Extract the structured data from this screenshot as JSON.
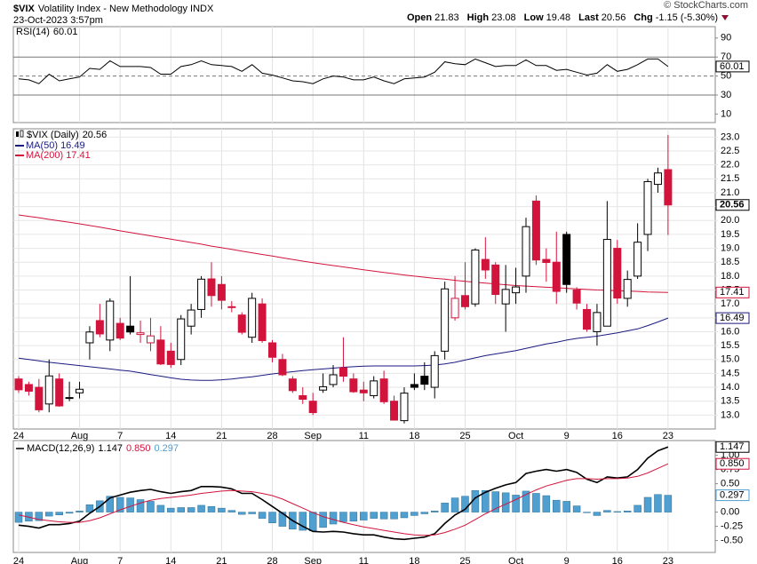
{
  "header": {
    "symbol": "$VIX",
    "name": "Volatility Index - New Methodology  INDX",
    "timestamp": "23-Oct-2023 3:57pm",
    "quote_labels": [
      "Open",
      "High",
      "Low",
      "Last",
      "Chg"
    ],
    "change": "-1.15 (-5.30%)",
    "watermark": "© StockCharts.com"
  },
  "chart_data": [
    {
      "type": "rsi",
      "name": "RSI(14)",
      "color": "#000000",
      "ylim": [
        1,
        102
      ],
      "yticks": [
        10,
        30,
        50,
        70,
        90
      ],
      "reference_lines": [
        30,
        50,
        70
      ],
      "reference_styles": [
        "solid",
        "dashed",
        "solid"
      ],
      "values": [
        47,
        46,
        42,
        52,
        45,
        47,
        49,
        58,
        57,
        66,
        60,
        60,
        60,
        59,
        52,
        52,
        60,
        62,
        66,
        62,
        61,
        60,
        55,
        62,
        53,
        51,
        48,
        45,
        44,
        42,
        47,
        50,
        49,
        46,
        46,
        49,
        45,
        42,
        47,
        48,
        49,
        54,
        65,
        63,
        62,
        68,
        64,
        60,
        61,
        61,
        67,
        61,
        61,
        56,
        57,
        54,
        51,
        53,
        62,
        55,
        57,
        62,
        68,
        68,
        60.01
      ]
    },
    {
      "type": "candlestick",
      "name": "$VIX (Daily)",
      "up_color": "#000000",
      "down_color": "#d2143c",
      "grid": true,
      "categories": [
        "24",
        null,
        null,
        null,
        null,
        null,
        "Aug",
        null,
        null,
        null,
        "7",
        null,
        null,
        null,
        null,
        "14",
        null,
        null,
        null,
        null,
        "21",
        null,
        null,
        null,
        null,
        "28",
        null,
        null,
        null,
        "Sep",
        null,
        null,
        null,
        null,
        "11",
        null,
        null,
        null,
        null,
        "18",
        null,
        null,
        null,
        null,
        "25",
        null,
        null,
        null,
        null,
        "Oct",
        null,
        null,
        null,
        null,
        "9",
        null,
        null,
        null,
        null,
        "16",
        null,
        null,
        null,
        null,
        "23"
      ],
      "open": [
        14.3,
        14.1,
        14.0,
        13.4,
        14.3,
        13.6,
        13.8,
        15.6,
        16.4,
        15.7,
        16.3,
        16.2,
        15.9,
        15.6,
        15.7,
        15.3,
        15.0,
        16.2,
        16.8,
        17.9,
        17.7,
        16.9,
        16.6,
        15.8,
        17.0,
        15.6,
        15.0,
        14.3,
        13.7,
        13.5,
        13.9,
        14.1,
        14.7,
        14.3,
        13.9,
        13.7,
        14.3,
        13.5,
        12.8,
        14.1,
        14.4,
        14.0,
        15.3,
        16.5,
        17.3,
        17.0,
        18.6,
        18.4,
        17.0,
        17.4,
        18.0,
        20.7,
        18.6,
        18.5,
        19.5,
        17.5,
        16.8,
        16.0,
        16.2,
        19.0,
        17.2,
        18.0,
        19.5,
        21.3,
        21.83
      ],
      "high": [
        14.4,
        14.2,
        14.3,
        15.0,
        14.5,
        14.2,
        14.2,
        16.2,
        17.0,
        17.2,
        16.5,
        18.0,
        16.4,
        16.5,
        16.2,
        15.6,
        16.6,
        17.0,
        18.0,
        18.5,
        18.0,
        17.1,
        16.7,
        17.4,
        17.2,
        15.7,
        15.2,
        14.4,
        14.0,
        13.8,
        14.5,
        14.8,
        15.8,
        14.5,
        14.2,
        14.4,
        14.6,
        13.7,
        14.0,
        14.5,
        14.9,
        15.3,
        17.8,
        18.0,
        18.5,
        19.0,
        19.4,
        18.5,
        18.4,
        18.3,
        20.1,
        20.9,
        19.0,
        19.6,
        19.6,
        17.6,
        17.0,
        17.0,
        20.7,
        19.3,
        18.2,
        19.9,
        21.5,
        21.9,
        23.08
      ],
      "low": [
        13.8,
        13.7,
        13.1,
        13.1,
        13.3,
        13.5,
        13.6,
        15.0,
        15.8,
        15.3,
        15.7,
        15.9,
        15.6,
        15.3,
        14.8,
        14.7,
        14.8,
        15.9,
        16.5,
        16.9,
        16.8,
        16.7,
        15.9,
        15.6,
        15.6,
        14.9,
        14.4,
        13.8,
        13.4,
        13.0,
        13.8,
        14.0,
        14.2,
        13.8,
        13.5,
        13.6,
        13.4,
        12.8,
        12.7,
        13.9,
        13.9,
        13.6,
        15.0,
        16.4,
        16.8,
        16.9,
        17.9,
        17.0,
        16.0,
        17.0,
        17.4,
        18.4,
        17.8,
        17.0,
        17.4,
        16.8,
        16.0,
        15.5,
        16.2,
        17.0,
        16.9,
        17.9,
        18.9,
        21.0,
        19.48
      ],
      "close": [
        13.91,
        13.86,
        13.19,
        14.41,
        13.33,
        13.63,
        13.93,
        15.99,
        15.92,
        17.1,
        15.77,
        15.99,
        15.96,
        15.85,
        14.84,
        14.82,
        16.46,
        16.78,
        17.89,
        17.3,
        17.13,
        16.87,
        15.98,
        17.2,
        15.68,
        15.08,
        14.45,
        13.88,
        13.57,
        13.09,
        14.02,
        14.45,
        14.4,
        13.84,
        13.8,
        14.23,
        13.48,
        12.82,
        13.79,
        14.0,
        14.11,
        15.14,
        17.54,
        17.2,
        16.9,
        18.94,
        18.22,
        17.34,
        17.52,
        17.61,
        19.78,
        18.58,
        18.49,
        17.45,
        17.7,
        17.03,
        16.09,
        16.69,
        19.32,
        17.21,
        17.88,
        19.22,
        21.4,
        21.71,
        20.56
      ],
      "series": [
        {
          "name": "MA(50)",
          "color": "#1a1a80",
          "values": [
            15.05,
            15.0,
            14.95,
            14.9,
            14.86,
            14.82,
            14.78,
            14.74,
            14.7,
            14.66,
            14.62,
            14.58,
            14.52,
            14.46,
            14.4,
            14.34,
            14.29,
            14.26,
            14.25,
            14.25,
            14.27,
            14.3,
            14.34,
            14.38,
            14.43,
            14.48,
            14.52,
            14.56,
            14.6,
            14.63,
            14.66,
            14.69,
            14.72,
            14.74,
            14.76,
            14.77,
            14.77,
            14.77,
            14.77,
            14.77,
            14.78,
            14.8,
            14.84,
            14.9,
            14.98,
            15.06,
            15.14,
            15.2,
            15.26,
            15.32,
            15.4,
            15.48,
            15.56,
            15.62,
            15.7,
            15.76,
            15.8,
            15.84,
            15.9,
            15.96,
            16.03,
            16.1,
            16.22,
            16.35,
            16.49
          ]
        },
        {
          "name": "MA(200)",
          "color": "#d2143c",
          "values": [
            20.2,
            20.15,
            20.1,
            20.04,
            19.99,
            19.94,
            19.88,
            19.82,
            19.76,
            19.7,
            19.63,
            19.57,
            19.51,
            19.45,
            19.39,
            19.33,
            19.27,
            19.21,
            19.15,
            19.08,
            19.02,
            18.96,
            18.9,
            18.84,
            18.78,
            18.72,
            18.66,
            18.6,
            18.54,
            18.48,
            18.43,
            18.38,
            18.33,
            18.28,
            18.23,
            18.18,
            18.13,
            18.09,
            18.04,
            18.0,
            17.96,
            17.92,
            17.89,
            17.85,
            17.81,
            17.78,
            17.75,
            17.72,
            17.69,
            17.66,
            17.64,
            17.62,
            17.6,
            17.58,
            17.56,
            17.54,
            17.52,
            17.5,
            17.49,
            17.47,
            17.46,
            17.45,
            17.43,
            17.42,
            17.41
          ]
        }
      ],
      "ylim": [
        12.5,
        23.3
      ],
      "yticks": [
        {
          "value": 13,
          "label": "13.0"
        },
        {
          "value": 13.5,
          "label": "13.5"
        },
        {
          "value": 14,
          "label": "14.0"
        },
        {
          "value": 14.5,
          "label": "14.5"
        },
        {
          "value": 15,
          "label": "15.0"
        },
        {
          "value": 15.5,
          "label": "15.5"
        },
        {
          "value": 16,
          "label": "16.0"
        },
        {
          "value": 16.5,
          "label": "16.5"
        },
        {
          "value": 17,
          "label": "17.0"
        },
        {
          "value": 17.5,
          "label": "17.5"
        },
        {
          "value": 18,
          "label": "18.0"
        },
        {
          "value": 18.5,
          "label": "18.5"
        },
        {
          "value": 19,
          "label": "19.0"
        },
        {
          "value": 19.5,
          "label": "19.5"
        },
        {
          "value": 20,
          "label": "20.0"
        },
        {
          "value": 20.5,
          "label": "20.5"
        },
        {
          "value": 21,
          "label": "21.0"
        },
        {
          "value": 21.5,
          "label": "21.5"
        },
        {
          "value": 22,
          "label": "22.0"
        },
        {
          "value": 22.5,
          "label": "22.5"
        },
        {
          "value": 23,
          "label": "23.0"
        }
      ]
    },
    {
      "type": "macd",
      "name": "MACD(12,26,9)",
      "ylim": [
        -0.71,
        1.26
      ],
      "yticks": [
        {
          "value": -0.5,
          "label": "-0.50"
        },
        {
          "value": -0.25,
          "label": "-0.25"
        },
        {
          "value": 0,
          "label": "0.00"
        },
        {
          "value": 0.25,
          "label": "0.25"
        },
        {
          "value": 0.5,
          "label": "0.50"
        },
        {
          "value": 0.75,
          "label": "0.75"
        },
        {
          "value": 1,
          "label": "1.00"
        }
      ],
      "series": [
        {
          "role": "line",
          "color": "#000000",
          "last_label": "1.147",
          "values": [
            -0.23,
            -0.25,
            -0.28,
            -0.22,
            -0.22,
            -0.2,
            -0.16,
            -0.02,
            0.1,
            0.25,
            0.3,
            0.35,
            0.38,
            0.4,
            0.36,
            0.33,
            0.36,
            0.38,
            0.45,
            0.45,
            0.44,
            0.41,
            0.33,
            0.33,
            0.22,
            0.1,
            -0.02,
            -0.15,
            -0.25,
            -0.34,
            -0.35,
            -0.34,
            -0.35,
            -0.38,
            -0.4,
            -0.4,
            -0.44,
            -0.47,
            -0.48,
            -0.46,
            -0.44,
            -0.38,
            -0.2,
            -0.05,
            0.05,
            0.25,
            0.35,
            0.42,
            0.48,
            0.52,
            0.68,
            0.72,
            0.75,
            0.72,
            0.75,
            0.7,
            0.58,
            0.52,
            0.62,
            0.6,
            0.62,
            0.75,
            0.95,
            1.08,
            1.147
          ]
        },
        {
          "role": "line",
          "color": "#d2143c",
          "last_label": "0.850",
          "values": [
            -0.05,
            -0.09,
            -0.13,
            -0.15,
            -0.17,
            -0.18,
            -0.18,
            -0.15,
            -0.1,
            -0.03,
            0.04,
            0.1,
            0.16,
            0.21,
            0.24,
            0.26,
            0.28,
            0.3,
            0.33,
            0.35,
            0.37,
            0.38,
            0.37,
            0.36,
            0.33,
            0.29,
            0.23,
            0.15,
            0.07,
            -0.01,
            -0.08,
            -0.13,
            -0.18,
            -0.22,
            -0.26,
            -0.29,
            -0.32,
            -0.35,
            -0.38,
            -0.4,
            -0.41,
            -0.4,
            -0.36,
            -0.3,
            -0.23,
            -0.13,
            -0.03,
            0.06,
            0.14,
            0.22,
            0.31,
            0.39,
            0.46,
            0.51,
            0.56,
            0.59,
            0.59,
            0.58,
            0.59,
            0.59,
            0.6,
            0.63,
            0.69,
            0.77,
            0.85
          ]
        },
        {
          "role": "histogram",
          "color": "#4f9fd0",
          "last_label": "0.297",
          "values": [
            -0.18,
            -0.16,
            -0.15,
            -0.07,
            -0.05,
            -0.02,
            0.02,
            0.13,
            0.2,
            0.28,
            0.26,
            0.25,
            0.22,
            0.19,
            0.12,
            0.07,
            0.08,
            0.08,
            0.12,
            0.1,
            0.07,
            0.03,
            -0.04,
            -0.03,
            -0.11,
            -0.19,
            -0.25,
            -0.3,
            -0.32,
            -0.33,
            -0.27,
            -0.21,
            -0.17,
            -0.16,
            -0.14,
            -0.11,
            -0.12,
            -0.12,
            -0.1,
            -0.06,
            -0.03,
            0.02,
            0.16,
            0.25,
            0.28,
            0.38,
            0.38,
            0.36,
            0.34,
            0.3,
            0.37,
            0.33,
            0.29,
            0.21,
            0.19,
            0.11,
            -0.01,
            -0.06,
            0.03,
            0.01,
            0.02,
            0.12,
            0.26,
            0.31,
            0.297
          ]
        }
      ]
    }
  ]
}
